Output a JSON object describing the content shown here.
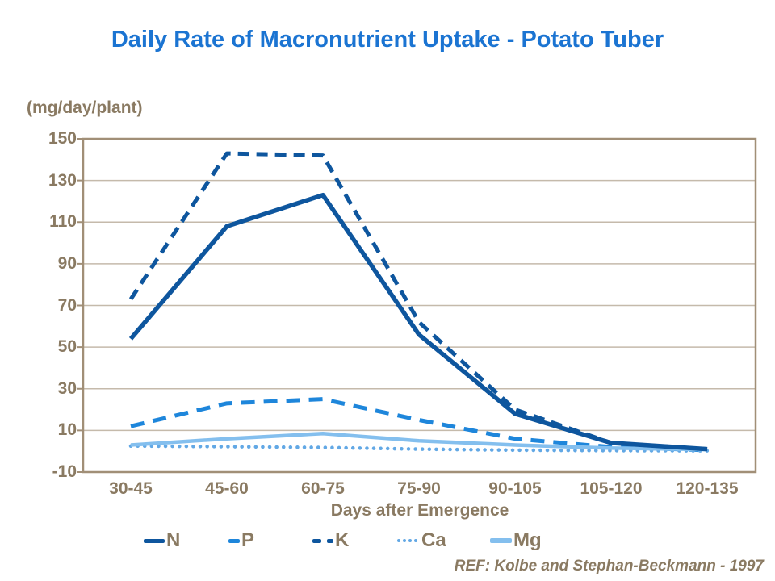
{
  "title": "Daily Rate of Macronutrient Uptake - Potato Tuber",
  "y_unit_label": "(mg/day/plant)",
  "x_axis_label": "Days after Emergence",
  "ref_text": "REF: Kolbe and Stephan-Beckmann - 1997",
  "colors": {
    "title_blue": "#1B74D2",
    "axis_text_brown": "#8A7A62",
    "gridline": "#C5BAAB",
    "frame": "#A18F77",
    "n_dark_blue": "#0E569E",
    "p_bright_blue": "#1E86DB",
    "k_dark_blue": "#0E569E",
    "ca_light_blue": "#62A8E5",
    "mg_light_blue": "#84BFEE"
  },
  "chart_data": {
    "type": "line",
    "title": "Daily Rate of Macronutrient Uptake - Potato Tuber",
    "xlabel": "Days after Emergence",
    "ylabel": "(mg/day/plant)",
    "categories": [
      "30-45",
      "45-60",
      "60-75",
      "75-90",
      "90-105",
      "105-120",
      "120-135"
    ],
    "series": [
      {
        "name": "N",
        "style": "solid",
        "color": "#0E569E",
        "values": [
          54,
          108,
          123,
          56,
          18,
          4,
          1
        ]
      },
      {
        "name": "P",
        "style": "dashed",
        "color": "#1E86DB",
        "values": [
          12,
          23,
          25,
          15,
          6,
          2,
          0.5
        ]
      },
      {
        "name": "K",
        "style": "dashed",
        "color": "#0E569E",
        "values": [
          73,
          143,
          142,
          62,
          20,
          4,
          1
        ]
      },
      {
        "name": "Ca",
        "style": "dotted",
        "color": "#62A8E5",
        "values": [
          2.5,
          2.2,
          1.8,
          1,
          0.5,
          0.3,
          0.2
        ]
      },
      {
        "name": "Mg",
        "style": "solid",
        "color": "#84BFEE",
        "values": [
          3,
          6,
          8.5,
          5,
          3,
          1.5,
          0.8
        ]
      }
    ],
    "ylim": [
      -10,
      150
    ],
    "yticks": [
      150,
      130,
      110,
      90,
      70,
      50,
      30,
      10,
      -10
    ],
    "grid": true,
    "legend_position": "bottom"
  }
}
